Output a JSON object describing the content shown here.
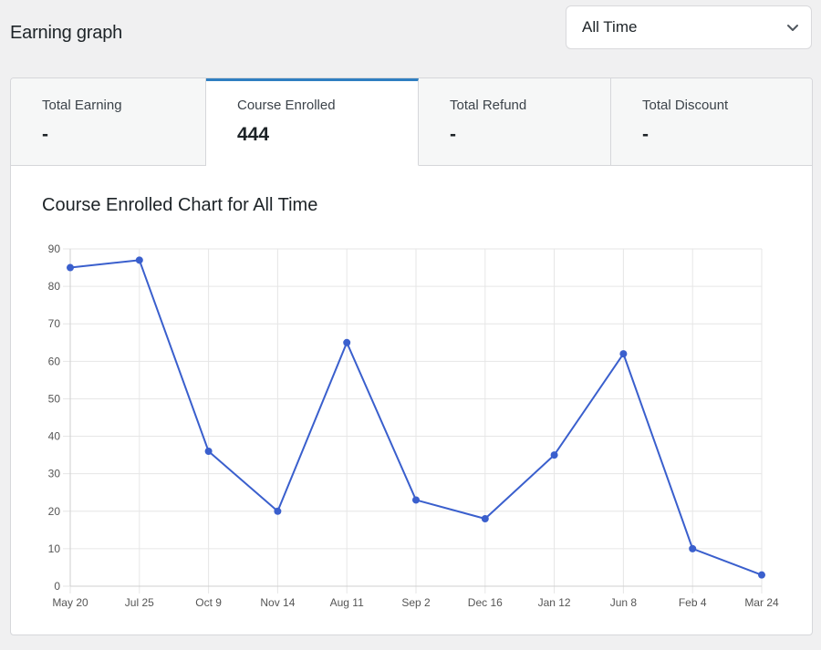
{
  "page": {
    "title": "Earning graph"
  },
  "period_select": {
    "value": "All Time",
    "icon": "chevron-down-icon"
  },
  "tabs": [
    {
      "label": "Total Earning",
      "value": "-"
    },
    {
      "label": "Course Enrolled",
      "value": "444"
    },
    {
      "label": "Total Refund",
      "value": "-"
    },
    {
      "label": "Total Discount",
      "value": "-"
    }
  ],
  "active_tab": 1,
  "chart_data": {
    "type": "line",
    "title": "Course Enrolled Chart for All Time",
    "categories": [
      "May 20",
      "Jul 25",
      "Oct 9",
      "Nov 14",
      "Aug 11",
      "Sep 2",
      "Dec 16",
      "Jan 12",
      "Jun 8",
      "Feb 4",
      "Mar 24"
    ],
    "series": [
      {
        "values": [
          85,
          87,
          36,
          20,
          65,
          23,
          18,
          35,
          62,
          10,
          3
        ]
      }
    ],
    "ylim": [
      0,
      90
    ],
    "yticks": [
      0,
      10,
      20,
      30,
      40,
      50,
      60,
      70,
      80,
      90
    ],
    "grid": true,
    "colors": {
      "line": "#3a5fcd",
      "grid": "#e6e6e6"
    }
  }
}
